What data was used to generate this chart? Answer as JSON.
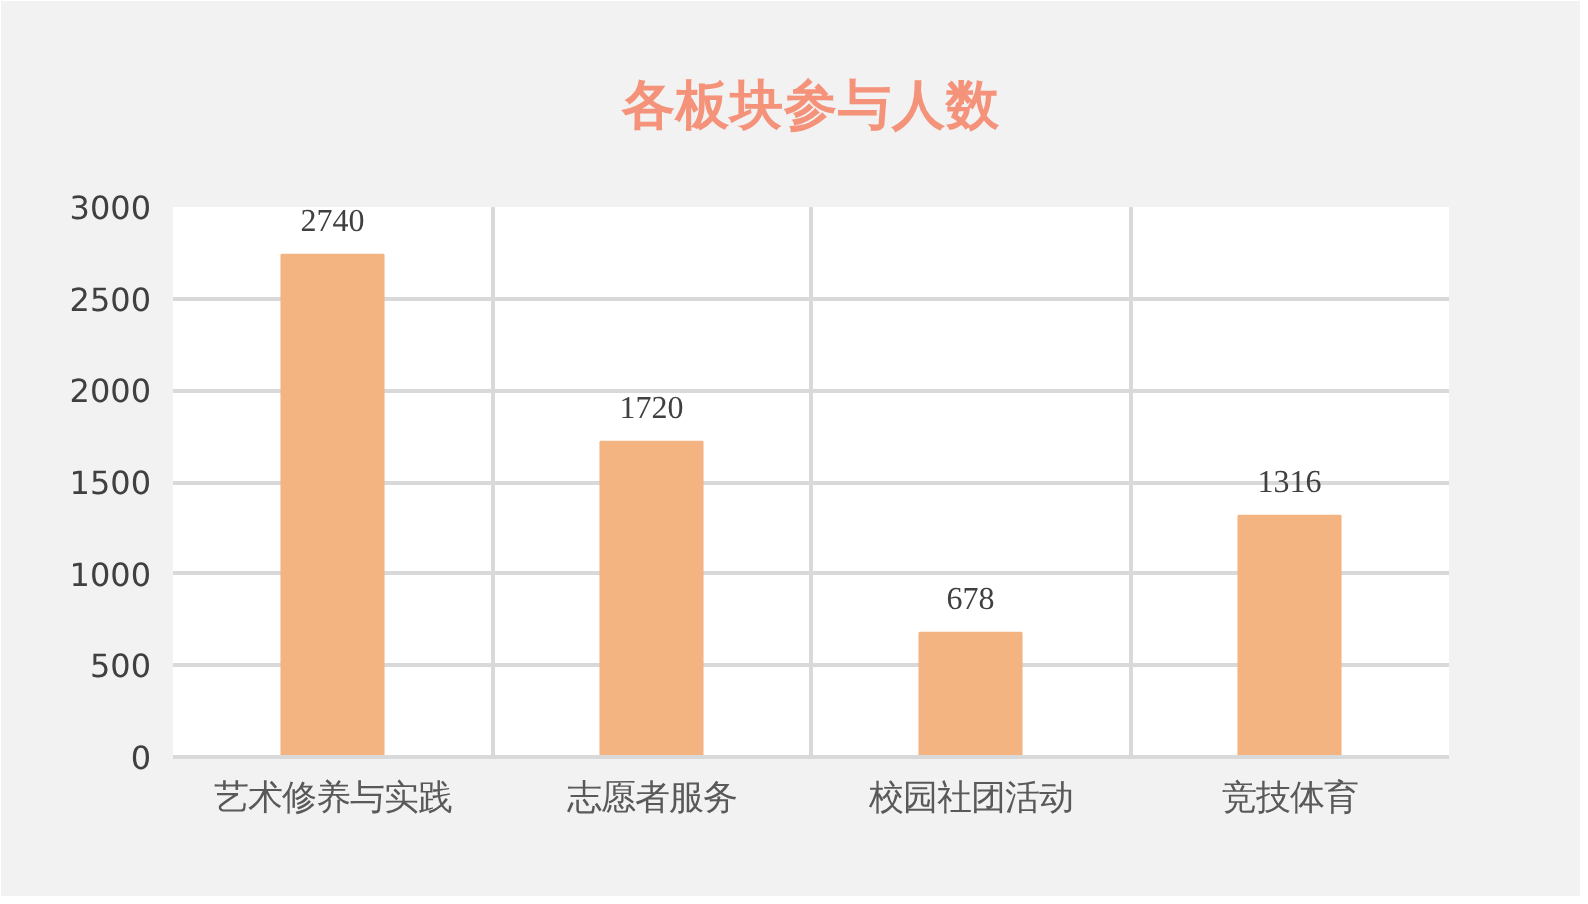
{
  "chart_data": {
    "type": "bar",
    "title": "各板块参与人数",
    "categories": [
      "艺术修养与实践",
      "志愿者服务",
      "校园社团活动",
      "竞技体育"
    ],
    "values": [
      2740,
      1720,
      678,
      1316
    ],
    "color": "#f4b482",
    "ylim": [
      0,
      3000
    ],
    "yticks": [
      0,
      500,
      1000,
      1500,
      2000,
      2500,
      3000
    ],
    "grid": true,
    "data_labels": true
  }
}
